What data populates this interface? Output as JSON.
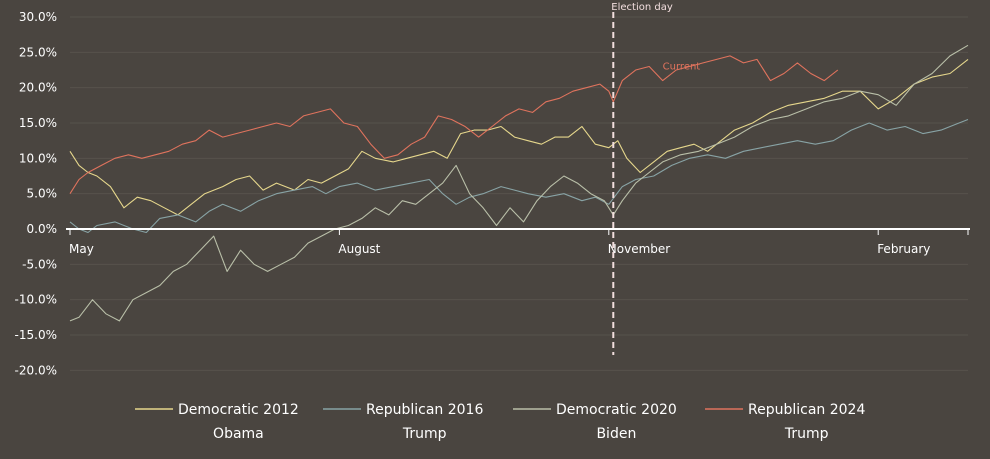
{
  "chart_data": {
    "type": "line",
    "title": "",
    "xlabel": "",
    "ylabel": "",
    "ylim": [
      -20,
      30
    ],
    "y_ticks": [
      30,
      25,
      20,
      15,
      10,
      5,
      0,
      -5,
      -10,
      -15,
      -20
    ],
    "y_tick_labels": [
      "30.0%",
      "25.0%",
      "20.0%",
      "15.0%",
      "10.0%",
      "5.0%",
      "0.0%",
      "-5.0%",
      "-10.0%",
      "-15.0%",
      "-20.0%"
    ],
    "x_unit": "months since start of May",
    "xlim": [
      0,
      10
    ],
    "x_ticks": [
      {
        "x": 0,
        "label": "May"
      },
      {
        "x": 3,
        "label": "August"
      },
      {
        "x": 6,
        "label": "November"
      },
      {
        "x": 9,
        "label": "February"
      }
    ],
    "grid": true,
    "legend_position": "bottom",
    "annotations": [
      {
        "type": "vline",
        "x": 6.05,
        "label": "Election day",
        "color": "#f2dede"
      },
      {
        "type": "text",
        "x": 6.6,
        "y": 23,
        "label": "Current",
        "color": "#e0735d"
      }
    ],
    "series": [
      {
        "name": "Democratic 2012",
        "name_line2": "Obama",
        "color": "#e6d78c",
        "x": [
          0,
          0.1,
          0.2,
          0.3,
          0.45,
          0.6,
          0.75,
          0.9,
          1.05,
          1.2,
          1.35,
          1.5,
          1.7,
          1.85,
          2.0,
          2.15,
          2.3,
          2.5,
          2.65,
          2.8,
          2.95,
          3.1,
          3.25,
          3.4,
          3.6,
          3.75,
          3.9,
          4.05,
          4.2,
          4.35,
          4.5,
          4.65,
          4.8,
          4.95,
          5.1,
          5.25,
          5.4,
          5.55,
          5.7,
          5.85,
          6.0,
          6.1,
          6.2,
          6.35,
          6.5,
          6.65,
          6.8,
          6.95,
          7.1,
          7.25,
          7.4,
          7.6,
          7.8,
          8.0,
          8.2,
          8.4,
          8.6,
          8.8,
          9.0,
          9.2,
          9.4,
          9.6,
          9.8,
          10.0
        ],
        "values": [
          11,
          9,
          8,
          7.5,
          6,
          3,
          4.5,
          4,
          3,
          2,
          3.5,
          5,
          6,
          7,
          7.5,
          5.5,
          6.5,
          5.5,
          7,
          6.5,
          7.5,
          8.5,
          11,
          10,
          9.5,
          10,
          10.5,
          11,
          10,
          13.5,
          14,
          14,
          14.5,
          13,
          12.5,
          12,
          13,
          13,
          14.5,
          12,
          11.5,
          12.5,
          10,
          8,
          9.5,
          11,
          11.5,
          12,
          11,
          12.5,
          14,
          15,
          16.5,
          17.5,
          18,
          18.5,
          19.5,
          19.5,
          17,
          18.5,
          20.5,
          21.5,
          22,
          24
        ]
      },
      {
        "name": "Republican  2016",
        "name_line2": "Trump",
        "color": "#88a3a5",
        "x": [
          0,
          0.1,
          0.2,
          0.3,
          0.5,
          0.7,
          0.85,
          1.0,
          1.2,
          1.4,
          1.55,
          1.7,
          1.9,
          2.1,
          2.3,
          2.5,
          2.7,
          2.85,
          3.0,
          3.2,
          3.4,
          3.6,
          3.8,
          4.0,
          4.15,
          4.3,
          4.45,
          4.6,
          4.8,
          4.95,
          5.1,
          5.3,
          5.5,
          5.7,
          5.85,
          6.0,
          6.15,
          6.3,
          6.5,
          6.7,
          6.9,
          7.1,
          7.3,
          7.5,
          7.7,
          7.9,
          8.1,
          8.3,
          8.5,
          8.7,
          8.9,
          9.1,
          9.3,
          9.5,
          9.7,
          9.9,
          10.0
        ],
        "values": [
          1,
          0,
          -0.5,
          0.5,
          1,
          0,
          -0.5,
          1.5,
          2,
          1,
          2.5,
          3.5,
          2.5,
          4,
          5,
          5.5,
          6,
          5,
          6,
          6.5,
          5.5,
          6,
          6.5,
          7,
          5,
          3.5,
          4.5,
          5,
          6,
          5.5,
          5,
          4.5,
          5,
          4,
          4.5,
          3.5,
          6,
          7,
          7.5,
          9,
          10,
          10.5,
          10,
          11,
          11.5,
          12,
          12.5,
          12,
          12.5,
          14,
          15,
          14,
          14.5,
          13.5,
          14,
          15,
          15.5
        ]
      },
      {
        "name": "Democratic  2020",
        "name_line2": "Biden",
        "color": "#b9bfa8",
        "x": [
          0,
          0.1,
          0.25,
          0.4,
          0.55,
          0.7,
          0.85,
          1.0,
          1.15,
          1.3,
          1.45,
          1.6,
          1.75,
          1.9,
          2.05,
          2.2,
          2.35,
          2.5,
          2.65,
          2.8,
          2.95,
          3.1,
          3.25,
          3.4,
          3.55,
          3.7,
          3.85,
          4.0,
          4.15,
          4.3,
          4.45,
          4.6,
          4.75,
          4.9,
          5.05,
          5.2,
          5.35,
          5.5,
          5.65,
          5.8,
          5.95,
          6.05,
          6.15,
          6.3,
          6.45,
          6.6,
          6.8,
          7.0,
          7.2,
          7.4,
          7.6,
          7.8,
          8.0,
          8.2,
          8.4,
          8.6,
          8.8,
          9.0,
          9.2,
          9.4,
          9.6,
          9.8,
          10.0
        ],
        "values": [
          -13,
          -12.5,
          -10,
          -12,
          -13,
          -10,
          -9,
          -8,
          -6,
          -5,
          -3,
          -1,
          -6,
          -3,
          -5,
          -6,
          -5,
          -4,
          -2,
          -1,
          0,
          0.5,
          1.5,
          3,
          2,
          4,
          3.5,
          5,
          6.5,
          9,
          5,
          3,
          0.5,
          3,
          1,
          4,
          6,
          7.5,
          6.5,
          5,
          4,
          2,
          4,
          6.5,
          8,
          9.5,
          10.5,
          11,
          12,
          13,
          14.5,
          15.5,
          16,
          17,
          18,
          18.5,
          19.5,
          19,
          17.5,
          20.5,
          22,
          24.5,
          26
        ]
      },
      {
        "name": "Republican  2024",
        "name_line2": "Trump",
        "color": "#e0735d",
        "x": [
          0,
          0.1,
          0.2,
          0.35,
          0.5,
          0.65,
          0.8,
          0.95,
          1.1,
          1.25,
          1.4,
          1.55,
          1.7,
          1.85,
          2.0,
          2.15,
          2.3,
          2.45,
          2.6,
          2.75,
          2.9,
          3.05,
          3.2,
          3.35,
          3.5,
          3.65,
          3.8,
          3.95,
          4.1,
          4.25,
          4.4,
          4.55,
          4.7,
          4.85,
          5.0,
          5.15,
          5.3,
          5.45,
          5.6,
          5.75,
          5.9,
          6.0,
          6.05,
          6.15,
          6.3,
          6.45,
          6.6,
          6.75,
          6.9,
          7.05,
          7.2,
          7.35,
          7.5,
          7.65,
          7.8,
          7.95,
          8.1,
          8.25,
          8.4,
          8.55
        ],
        "values": [
          5,
          7,
          8,
          9,
          10,
          10.5,
          10,
          10.5,
          11,
          12,
          12.5,
          14,
          13,
          13.5,
          14,
          14.5,
          15,
          14.5,
          16,
          16.5,
          17,
          15,
          14.5,
          12,
          10,
          10.5,
          12,
          13,
          16,
          15.5,
          14.5,
          13,
          14.5,
          16,
          17,
          16.5,
          18,
          18.5,
          19.5,
          20,
          20.5,
          19.5,
          18,
          21,
          22.5,
          23,
          21,
          22.5,
          23,
          23.5,
          24,
          24.5,
          23.5,
          24,
          21,
          22,
          23.5,
          22,
          21,
          22.5
        ]
      }
    ]
  }
}
